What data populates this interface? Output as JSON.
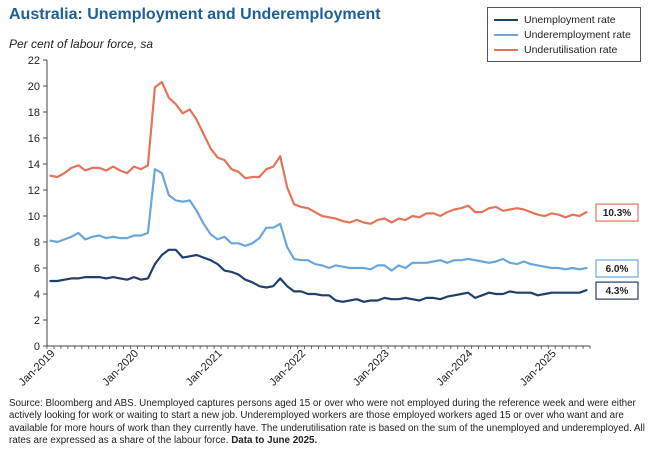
{
  "header": {
    "title": "Australia: Unemployment and Underemployment",
    "subtitle": "Per cent of labour force, sa"
  },
  "legend": {
    "items": [
      {
        "label": "Unemployment rate",
        "color": "#1f3f6e"
      },
      {
        "label": "Underemployment rate",
        "color": "#6aa6dc"
      },
      {
        "label": "Underutilisation rate",
        "color": "#e5735a"
      }
    ]
  },
  "footer": {
    "source": "Source: Bloomberg and ABS. Unemployed captures persons aged 15 or over who were not employed during the reference week and were either actively looking for work or waiting to start a new job.  Underemployed workers are those employed workers aged 15 or over who want and are available for more hours of work than they currently have.  The underutilisation rate is based on the sum of the unemployed and underemployed. All rates are expressed as a share of the labour force.",
    "data_note": "Data to June 2025."
  },
  "chart_data": {
    "type": "line",
    "start_month": "Jan-2019",
    "x_tick_labels": [
      "Jan-2019",
      "Jan-2020",
      "Jan-2021",
      "Jan-2022",
      "Jan-2023",
      "Jan-2024",
      "Jan-2025"
    ],
    "ylim": [
      0,
      22
    ],
    "y_ticks": [
      0,
      2,
      4,
      6,
      8,
      10,
      12,
      14,
      16,
      18,
      20,
      22
    ],
    "grid": false,
    "legend_position": "top-right",
    "series": [
      {
        "name": "Unemployment rate",
        "color": "#1f3f6e",
        "end_label": "4.3%",
        "values": [
          5.0,
          5.0,
          5.1,
          5.2,
          5.2,
          5.3,
          5.3,
          5.3,
          5.2,
          5.3,
          5.2,
          5.1,
          5.3,
          5.1,
          5.2,
          6.3,
          7.0,
          7.4,
          7.4,
          6.8,
          6.9,
          7.0,
          6.8,
          6.6,
          6.3,
          5.8,
          5.7,
          5.5,
          5.1,
          4.9,
          4.6,
          4.5,
          4.6,
          5.2,
          4.6,
          4.2,
          4.2,
          4.0,
          4.0,
          3.9,
          3.9,
          3.5,
          3.4,
          3.5,
          3.6,
          3.4,
          3.5,
          3.5,
          3.7,
          3.6,
          3.6,
          3.7,
          3.6,
          3.5,
          3.7,
          3.7,
          3.6,
          3.8,
          3.9,
          4.0,
          4.1,
          3.7,
          3.9,
          4.1,
          4.0,
          4.0,
          4.2,
          4.1,
          4.1,
          4.1,
          3.9,
          4.0,
          4.1,
          4.1,
          4.1,
          4.1,
          4.1,
          4.3
        ]
      },
      {
        "name": "Underemployment rate",
        "color": "#6aa6dc",
        "end_label": "6.0%",
        "values": [
          8.1,
          8.0,
          8.2,
          8.4,
          8.7,
          8.2,
          8.4,
          8.5,
          8.3,
          8.4,
          8.3,
          8.3,
          8.5,
          8.5,
          8.7,
          13.6,
          13.3,
          11.6,
          11.2,
          11.1,
          11.2,
          10.4,
          9.4,
          8.6,
          8.2,
          8.4,
          7.9,
          7.9,
          7.7,
          7.9,
          8.3,
          9.1,
          9.1,
          9.4,
          7.6,
          6.7,
          6.6,
          6.6,
          6.3,
          6.2,
          6.0,
          6.2,
          6.1,
          6.0,
          6.0,
          6.0,
          5.9,
          6.2,
          6.2,
          5.8,
          6.2,
          6.0,
          6.4,
          6.4,
          6.4,
          6.5,
          6.6,
          6.4,
          6.6,
          6.6,
          6.7,
          6.6,
          6.5,
          6.4,
          6.5,
          6.7,
          6.4,
          6.3,
          6.5,
          6.3,
          6.2,
          6.1,
          6.0,
          6.0,
          5.9,
          6.0,
          5.9,
          6.0
        ]
      },
      {
        "name": "Underutilisation rate",
        "color": "#e5735a",
        "end_label": "10.3%",
        "values": [
          13.1,
          13.0,
          13.3,
          13.7,
          13.9,
          13.5,
          13.7,
          13.7,
          13.5,
          13.8,
          13.5,
          13.3,
          13.8,
          13.6,
          13.9,
          19.9,
          20.3,
          19.1,
          18.6,
          17.9,
          18.2,
          17.4,
          16.3,
          15.2,
          14.5,
          14.3,
          13.6,
          13.4,
          12.9,
          13.0,
          13.0,
          13.6,
          13.8,
          14.6,
          12.2,
          10.9,
          10.7,
          10.6,
          10.3,
          10.0,
          9.9,
          9.8,
          9.6,
          9.5,
          9.7,
          9.5,
          9.4,
          9.7,
          9.8,
          9.5,
          9.8,
          9.7,
          10.0,
          9.9,
          10.2,
          10.2,
          10.0,
          10.3,
          10.5,
          10.6,
          10.8,
          10.3,
          10.3,
          10.6,
          10.7,
          10.4,
          10.5,
          10.6,
          10.5,
          10.3,
          10.1,
          10.0,
          10.2,
          10.1,
          9.9,
          10.1,
          10.0,
          10.3
        ]
      }
    ]
  }
}
